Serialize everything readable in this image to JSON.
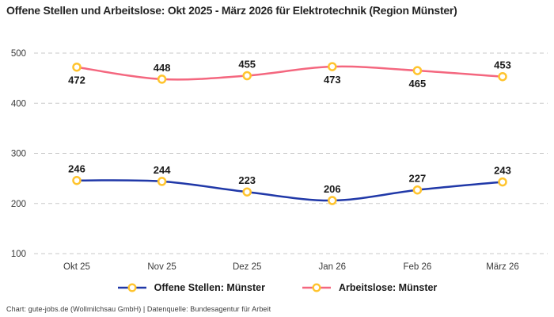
{
  "title": "Offene Stellen und Arbeitslose: Okt 2025 - März 2026 für Elektrotechnik (Region Münster)",
  "footer": "Chart: gute-jobs.de (Wollmilchsau GmbH) | Datenquelle: Bundesagentur für Arbeit",
  "colors": {
    "blue": "#2038A8",
    "pink": "#F4677F",
    "marker_yellow": "#FFC42E",
    "marker_fill": "#FFFFFF",
    "grid": "#C9C9C9",
    "tick_text": "#3A3A3A",
    "label_text": "#1A1A1A",
    "background": "#FFFFFF"
  },
  "legend": {
    "items": [
      {
        "id": "offene-stellen",
        "label": "Offene Stellen: Münster",
        "color": "#2038A8"
      },
      {
        "id": "arbeitslose",
        "label": "Arbeitslose: Münster",
        "color": "#F4677F"
      }
    ]
  },
  "chart_data": {
    "type": "line",
    "title": "Offene Stellen und Arbeitslose: Okt 2025 - März 2026 für Elektrotechnik (Region Münster)",
    "categories": [
      "Okt 25",
      "Nov 25",
      "Dez 25",
      "Jan 26",
      "Feb 26",
      "März 26"
    ],
    "series": [
      {
        "id": "offene-stellen",
        "name": "Offene Stellen: Münster",
        "color": "#2038A8",
        "values": [
          246,
          244,
          223,
          206,
          227,
          243
        ],
        "label_positions": [
          "above",
          "above",
          "above",
          "above",
          "above",
          "above"
        ]
      },
      {
        "id": "arbeitslose",
        "name": "Arbeitslose: Münster",
        "color": "#F4677F",
        "values": [
          472,
          448,
          455,
          473,
          465,
          453
        ],
        "label_positions": [
          "below",
          "above",
          "above",
          "below",
          "below",
          "above"
        ]
      }
    ],
    "xlabel": "",
    "ylabel": "",
    "ylim": [
      100,
      500
    ],
    "yticks": [
      100,
      200,
      300,
      400,
      500
    ],
    "grid": "horizontal-dashed",
    "legend_position": "bottom",
    "marker": {
      "shape": "circle",
      "fill": "#FFFFFF",
      "stroke": "#FFC42E"
    }
  }
}
